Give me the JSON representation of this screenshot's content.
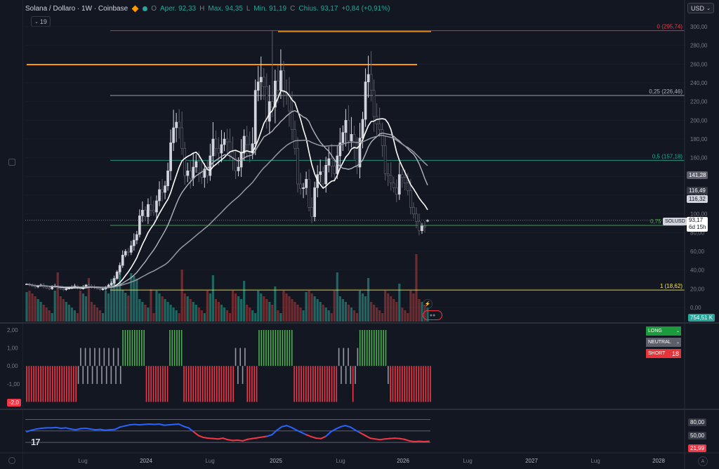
{
  "header": {
    "symbol": "Solana / Dollaro · 1W · Coinbase",
    "open_label": "O",
    "open_text": "Aper. 92,33",
    "high_label": "H",
    "high_text": "Max. 94,35",
    "low_label": "L",
    "low_text": "Min. 91,19",
    "close_label": "C",
    "close_text": "Chius. 93,17",
    "change": "+0,84 (+0,91%)",
    "indicator_count": "19",
    "currency": "USD"
  },
  "price_axis": {
    "ticks": [
      "300,00",
      "280,00",
      "260,00",
      "240,00",
      "220,00",
      "200,00",
      "180,00",
      "160,00",
      "140,00",
      "120,00",
      "100,00",
      "80,00",
      "60,00",
      "40,00",
      "20,00",
      "0,00"
    ]
  },
  "fib_levels": [
    {
      "label": "0 (295,74)",
      "color": "#f23645"
    },
    {
      "label": "0,25 (226,46)",
      "color": "#b2b5be"
    },
    {
      "label": "0,5 (157,18)",
      "color": "#22ab94"
    },
    {
      "label": "0,75",
      "color": "#4caf50"
    },
    {
      "label": "1 (18,62)",
      "color": "#ffeb3b"
    }
  ],
  "price_badges": {
    "ma_top": "141,28",
    "ma_mid": "116,49",
    "ma_low": "116,32",
    "symbol_tag": "SOLUSD",
    "last_price": "93,17",
    "countdown": "6d 15h",
    "volume": "754,51 K"
  },
  "osc_axis": {
    "ticks": [
      "2,00",
      "1,00",
      "0,00",
      "-1,00"
    ],
    "current": "-2,0"
  },
  "signal_legend": {
    "long_label": "LONG",
    "long_count": "-",
    "neutral_label": "NEUTRAL",
    "neutral_count": "-",
    "short_label": "SHORT",
    "short_count": "18"
  },
  "rsi_axis": {
    "upper": "80,00",
    "mid": "50,00",
    "current": "21,99"
  },
  "time_axis": [
    "Lug",
    "2024",
    "Lug",
    "2025",
    "Lug",
    "2026",
    "Lug",
    "2027",
    "Lug",
    "2028"
  ],
  "colors": {
    "up": "#26a69a",
    "down": "#ef5350",
    "bg": "#131722",
    "grid": "#1e222d",
    "orange": "#ff9800"
  },
  "chart_data": {
    "type": "candlestick",
    "title": "Solana / Dollaro · 1W · Coinbase",
    "ylim": [
      0,
      300
    ],
    "ohlc_last": {
      "open": 92.33,
      "high": 94.35,
      "low": 91.19,
      "close": 93.17,
      "change": 0.84,
      "change_pct": 0.91
    },
    "x_labels": [
      "Lug",
      "2024",
      "Lug",
      "2025",
      "Lug",
      "2026",
      "Lug",
      "2027",
      "Lug",
      "2028"
    ],
    "fib_retracement": [
      {
        "level": 0,
        "price": 295.74
      },
      {
        "level": 0.25,
        "price": 226.46
      },
      {
        "level": 0.5,
        "price": 157.18
      },
      {
        "level": 0.75
      },
      {
        "level": 1,
        "price": 18.62
      }
    ],
    "horizontal_lines": [
      {
        "price": 260,
        "color": "#ff9800"
      },
      {
        "price": 295.74,
        "color": "#ff9800"
      }
    ],
    "closes": [
      25,
      24,
      23,
      22,
      23,
      24,
      22,
      21,
      20,
      22,
      23,
      21,
      20,
      19,
      20,
      21,
      22,
      23,
      21,
      20,
      22,
      24,
      23,
      22,
      21,
      20,
      19,
      20,
      22,
      24,
      26,
      31,
      38,
      45,
      56,
      60,
      59,
      66,
      72,
      78,
      98,
      104,
      97,
      110,
      104,
      102,
      114,
      126,
      123,
      130,
      146,
      176,
      192,
      198,
      192,
      170,
      141,
      146,
      138,
      150,
      156,
      144,
      139,
      148,
      141,
      162,
      180,
      170,
      165,
      174,
      180,
      177,
      166,
      159,
      146,
      150,
      165,
      183,
      174,
      165,
      175,
      232,
      241,
      246,
      236,
      199,
      220,
      214,
      242,
      232,
      253,
      230,
      228,
      210,
      190,
      170,
      132,
      127,
      128,
      137,
      107,
      97,
      128,
      142,
      145,
      132,
      152,
      159,
      151,
      143,
      162,
      176,
      187,
      200,
      178,
      185,
      170,
      150,
      181,
      201,
      241,
      249,
      232,
      204,
      196,
      190,
      173,
      143,
      141,
      133,
      128,
      121,
      142,
      139,
      133,
      125,
      107,
      100,
      92,
      82,
      87,
      86,
      93
    ]
  },
  "osc_data": {
    "states": [
      "S",
      "S",
      "S",
      "S",
      "S",
      "S",
      "S",
      "S",
      "S",
      "S",
      "S",
      "S",
      "S",
      "S",
      "S",
      "S",
      "S",
      "S",
      "S",
      "S",
      "S",
      "S",
      "N",
      "N",
      "N",
      "N",
      "N",
      "N",
      "N",
      "N",
      "N",
      "N",
      "N",
      "N",
      "N",
      "N",
      "N",
      "N",
      "N",
      "N",
      "N",
      "L",
      "L",
      "L",
      "L",
      "L",
      "L",
      "L",
      "L",
      "L",
      "L",
      "S",
      "S",
      "S",
      "S",
      "S",
      "S",
      "S",
      "S",
      "S",
      "S",
      "L",
      "L",
      "L",
      "L",
      "L",
      "L",
      "S",
      "S",
      "S",
      "S",
      "S",
      "S",
      "S",
      "S",
      "S",
      "S",
      "S",
      "S",
      "S",
      "S",
      "S",
      "S",
      "S",
      "S",
      "S",
      "S",
      "S",
      "S",
      "N",
      "N",
      "N",
      "N",
      "N",
      "S",
      "S",
      "S",
      "S",
      "S",
      "L",
      "L",
      "L",
      "L",
      "L",
      "L",
      "L",
      "L",
      "L",
      "L",
      "L",
      "L",
      "L",
      "L",
      "L",
      "S",
      "S",
      "S",
      "S",
      "S",
      "S",
      "S",
      "S",
      "S",
      "S",
      "S",
      "S",
      "S",
      "S",
      "S",
      "S",
      "S",
      "S",
      "S",
      "N",
      "N",
      "N",
      "N",
      "N",
      "N",
      "S",
      "N",
      "N",
      "L",
      "L",
      "L",
      "L",
      "L",
      "L",
      "L",
      "L",
      "L",
      "L",
      "L",
      "L",
      "N",
      "S",
      "S",
      "S",
      "S",
      "S",
      "S",
      "S",
      "S",
      "S",
      "S",
      "S",
      "S",
      "S",
      "S",
      "S",
      "S",
      "S",
      "S"
    ]
  },
  "rsi_data": {
    "values": [
      48,
      52,
      55,
      57,
      58,
      58,
      59,
      57,
      58,
      55,
      53,
      56,
      57,
      55,
      53,
      54,
      52,
      53,
      54,
      60,
      63,
      66,
      67,
      66,
      67,
      68,
      67,
      68,
      65,
      66,
      67,
      68,
      62,
      58,
      48,
      38,
      33,
      31,
      30,
      29,
      31,
      27,
      25,
      26,
      24,
      28,
      30,
      32,
      34,
      36,
      40,
      52,
      61,
      64,
      59,
      52,
      46,
      40,
      35,
      31,
      30,
      36,
      48,
      55,
      61,
      64,
      60,
      52,
      45,
      38,
      31,
      29,
      27,
      29,
      30,
      31,
      30,
      28,
      24,
      22,
      23,
      22,
      23
    ]
  }
}
